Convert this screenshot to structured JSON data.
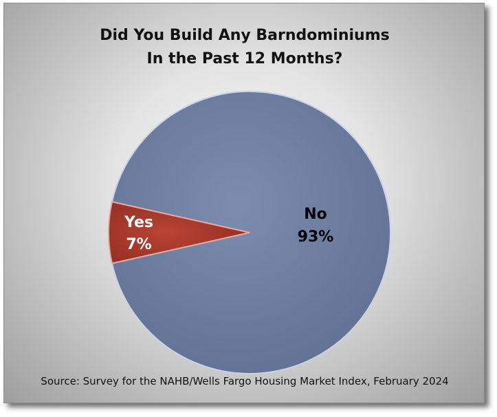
{
  "chart_data": {
    "type": "pie",
    "title_line1": "Did You Build Any Barndominiums",
    "title_line2": "In the Past 12 Months?",
    "slices": [
      {
        "label": "Yes",
        "value_label": "7%",
        "value": 7,
        "color": "#a93a2c"
      },
      {
        "label": "No",
        "value_label": "93%",
        "value": 93,
        "color": "#6e7ea0"
      }
    ],
    "source": "Source: Survey for the NAHB/Wells Fargo Housing Market Index, February 2024"
  }
}
